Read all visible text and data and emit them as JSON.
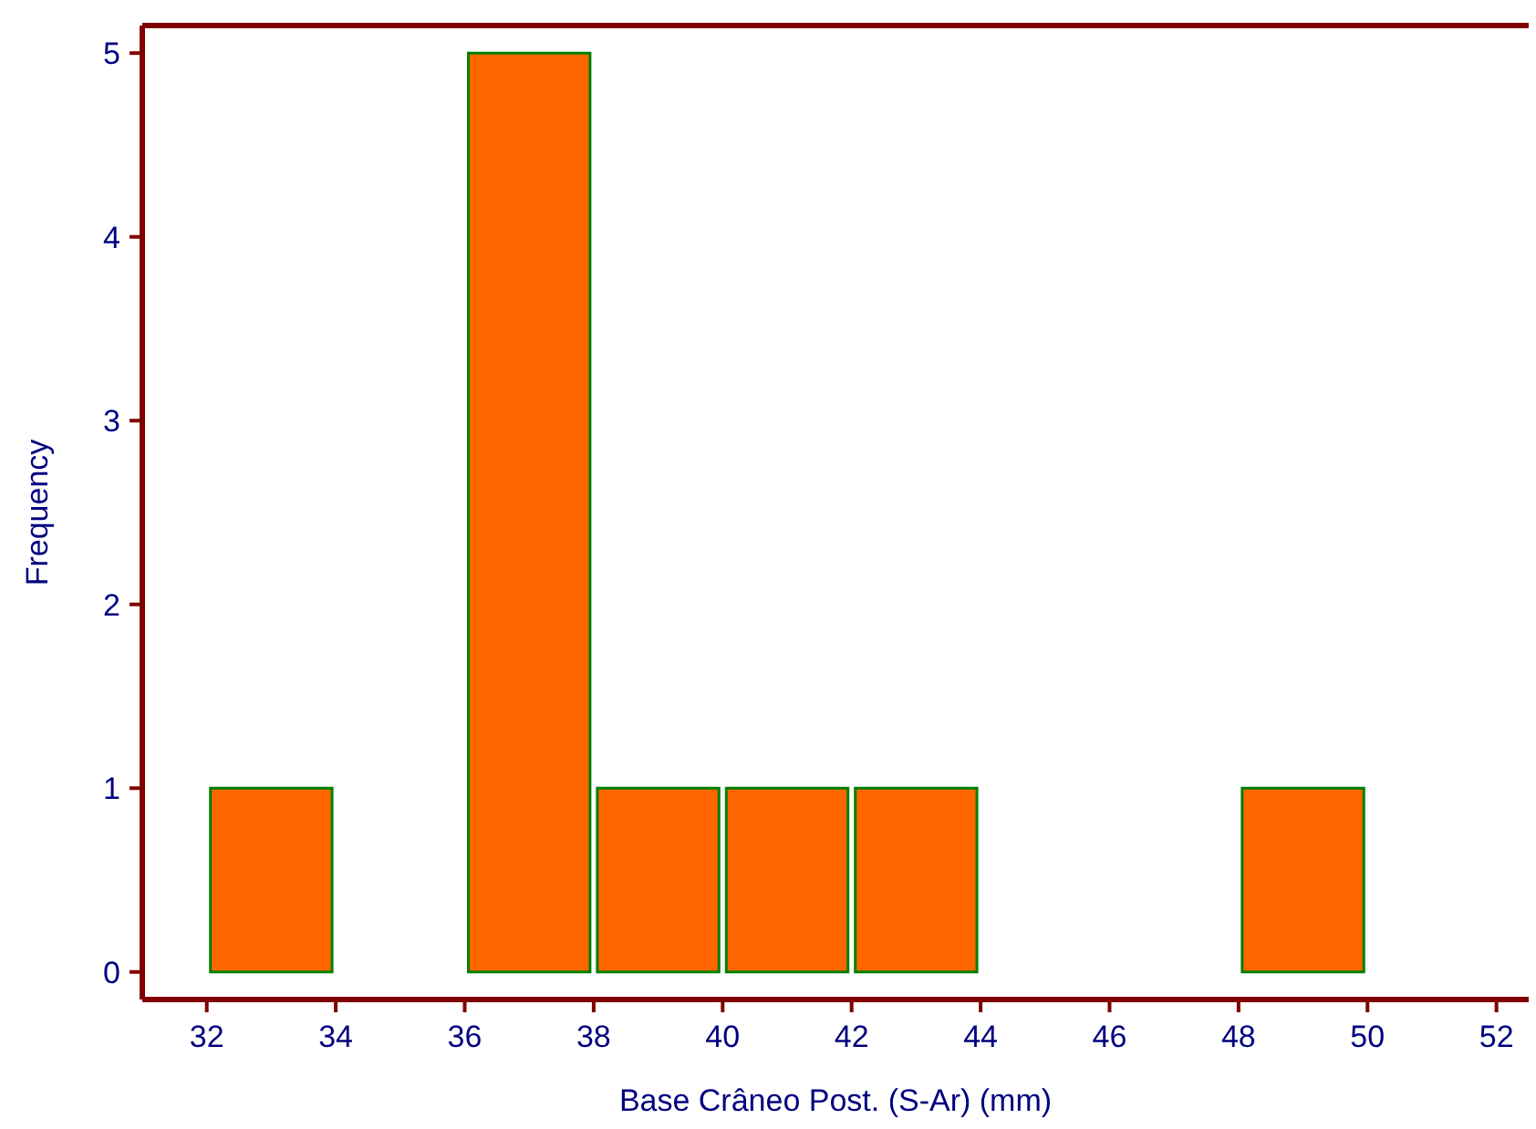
{
  "chart_data": {
    "type": "histogram",
    "xlabel": "Base Crâneo Post. (S-Ar) (mm)",
    "ylabel": "Frequency",
    "bins": [
      32,
      34,
      36,
      38,
      40,
      42,
      44,
      46,
      48,
      50
    ],
    "values": [
      1,
      0,
      5,
      1,
      1,
      1,
      0,
      0,
      1
    ],
    "color": "#ff6600",
    "xlim": [
      31,
      52.5
    ],
    "ylim": [
      -0.15,
      5.15
    ],
    "xticks": [
      32,
      34,
      36,
      38,
      40,
      42,
      44,
      46,
      48,
      50,
      52
    ],
    "yticks": [
      0,
      1,
      2,
      3,
      4,
      5
    ],
    "grid": false
  }
}
